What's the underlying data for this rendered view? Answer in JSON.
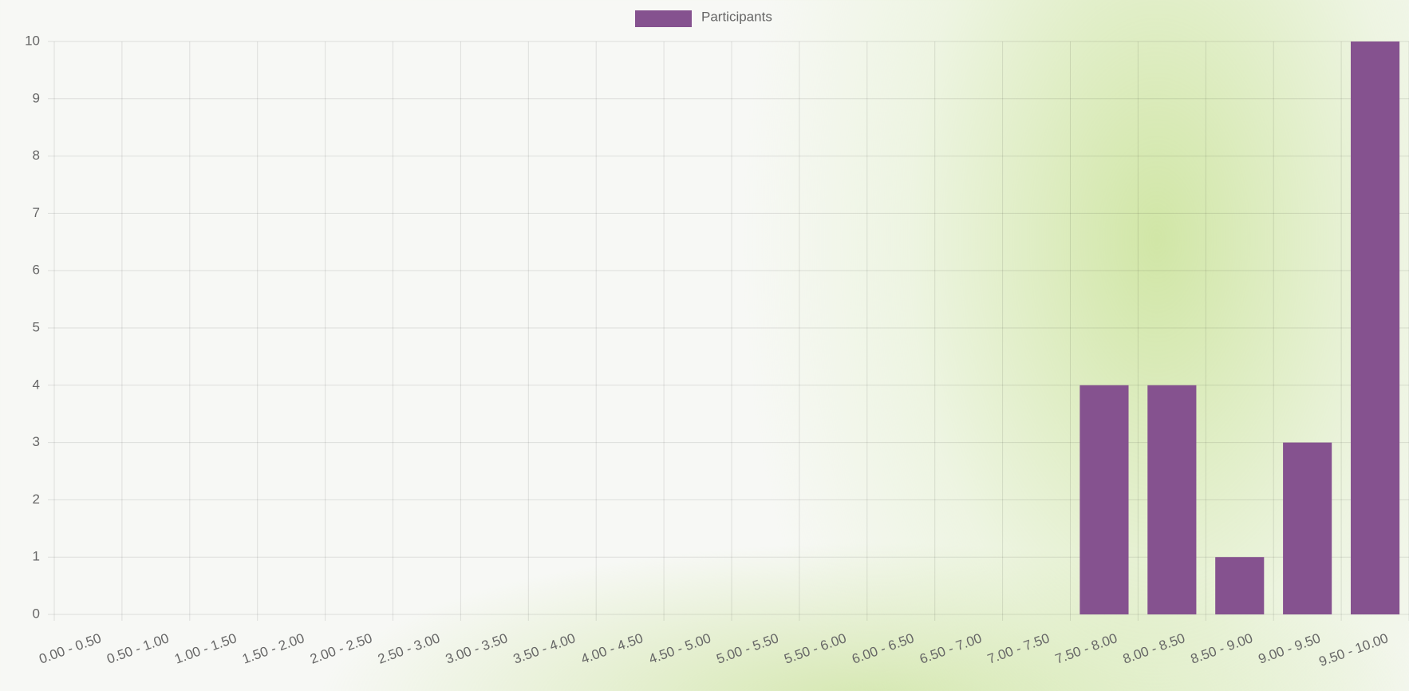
{
  "chart_data": {
    "type": "bar",
    "legend": "top",
    "series": [
      {
        "name": "Participants",
        "color": "#85528f",
        "values": [
          0,
          0,
          0,
          0,
          0,
          0,
          0,
          0,
          0,
          0,
          0,
          0,
          0,
          0,
          0,
          4,
          4,
          1,
          3,
          10
        ]
      }
    ],
    "categories": [
      "0.00 - 0.50",
      "0.50 - 1.00",
      "1.00 - 1.50",
      "1.50 - 2.00",
      "2.00 - 2.50",
      "2.50 - 3.00",
      "3.00 - 3.50",
      "3.50 - 4.00",
      "4.00 - 4.50",
      "4.50 - 5.00",
      "5.00 - 5.50",
      "5.50 - 6.00",
      "6.00 - 6.50",
      "6.50 - 7.00",
      "7.00 - 7.50",
      "7.50 - 8.00",
      "8.00 - 8.50",
      "8.50 - 9.00",
      "9.00 - 9.50",
      "9.50 - 10.00"
    ],
    "ylim": [
      0,
      10
    ],
    "yticks": [
      0,
      1,
      2,
      3,
      4,
      5,
      6,
      7,
      8,
      9,
      10
    ],
    "grid": true
  }
}
